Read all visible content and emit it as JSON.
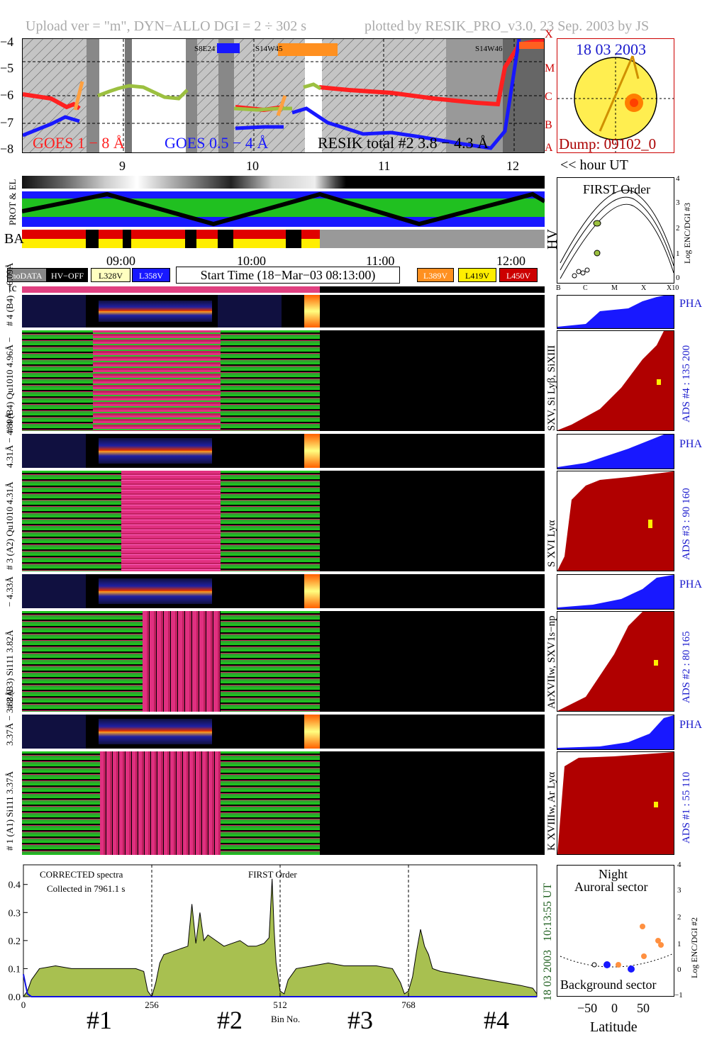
{
  "header": {
    "left": "Upload ver = \"m\", DYN−ALLO DGI =   2 ÷ 302 s",
    "right": "plotted by RESIK_PRO_v3.0, 23 Sep. 2003 by JS"
  },
  "goes": {
    "ytick_labels": [
      "−4",
      "−5",
      "−6",
      "−7",
      "−8"
    ],
    "class_labels": [
      "X",
      "M",
      "C",
      "B",
      "A"
    ],
    "legend_goes18": "GOES 1 − 8 Å",
    "legend_goes054": "GOES 0.5 − 4 Å",
    "legend_resik": "RESIK total #2 3.8 − 4.3 Å",
    "flare_tags": [
      "S8E24",
      "S14W45",
      "S14W46"
    ],
    "colors": {
      "goes18": "#ff2020",
      "goes054": "#1010e0",
      "resik": "#000000",
      "mask": "#ffa040"
    }
  },
  "sun": {
    "date": "18 03 2003",
    "dump": "Dump: 09102_0",
    "fill": "#ffee50",
    "spot": "#ff7f00"
  },
  "hour_axis": {
    "ticks": [
      "9",
      "10",
      "11",
      "12"
    ],
    "unit_label": "<< hour UT"
  },
  "hk": {
    "row1": "PROT & EL",
    "row2": "BA",
    "hv": "HV"
  },
  "time_axis": {
    "ticks": [
      "09:00",
      "10:00",
      "11:00",
      "12:00"
    ]
  },
  "legend_chips": {
    "nodata": "noDATA",
    "hvoff": "HV−OFF",
    "l328": "L328V",
    "l358": "L358V",
    "l389": "L389V",
    "l419": "L419V",
    "l450": "L450V"
  },
  "start_time": "Start Time (18−Mar−03 08:13:00)",
  "tc": "tc",
  "first_order": {
    "title": "FIRST Order",
    "ylabel": "Log ENC/DGI #3",
    "yticks": [
      "4",
      "3",
      "2",
      "1",
      "0"
    ],
    "xticks": [
      "B",
      "C",
      "M",
      "X",
      "X10"
    ]
  },
  "channels": [
    {
      "pha_label": "# 4 (B4) − 6.09Å",
      "spec_label": "# 4 (B4) Qu1010 4.96Å −",
      "line_label": "SXV, Si Lyβ, SiXIII",
      "ads": "ADS #4 :   135 200",
      "pha": "PHA"
    },
    {
      "pha_label": "4.31Å − 4.89Å",
      "spec_label": "# 3 (A2) Qu1010 4.31Å",
      "line_label": "S XVI Lyα",
      "ads": "ADS #3 :   90 160",
      "pha": "PHA"
    },
    {
      "pha_label": "− 4.33Å",
      "spec_label": "# 2 (B3) Si111 3.82Å",
      "line_label": "ArXVIIw, SXV1s−np",
      "ads": "ADS #2 :   80 165",
      "pha": "PHA"
    },
    {
      "pha_label": "3.37Å − 3.88Å",
      "spec_label": "# 1 (A1) Si111 3.37Å",
      "line_label": "K XVIIIw, Ar Lyα",
      "ads": "ADS #1 :   55 110",
      "pha": "PHA"
    }
  ],
  "spectrum": {
    "note1": "CORRECTED spectra",
    "note2": "Collected in  7961.1 s",
    "first_order": "FIRST Order",
    "side_time": "10:13:55 UT",
    "side_date": "18 03 2003",
    "xtick_labels": [
      "0",
      "256",
      "512",
      "768"
    ],
    "xlabel": "Bin No.",
    "section_labels": [
      "#1",
      "#2",
      "#3",
      "#4"
    ],
    "section_colors": [
      "#cc0000",
      "#1010d0",
      "#cc0000",
      "#1010d0"
    ]
  },
  "chart_data": {
    "type": "area",
    "title": "CORRECTED spectra",
    "xlabel": "Bin No.",
    "ylabel": "",
    "xlim": [
      0,
      1024
    ],
    "ylim": [
      0,
      0.47
    ],
    "ytick_labels": [
      "0.0",
      "0.1",
      "0.2",
      "0.3",
      "0.4"
    ],
    "x": [
      0,
      8,
      16,
      32,
      64,
      96,
      128,
      160,
      192,
      224,
      240,
      248,
      256,
      264,
      272,
      280,
      296,
      312,
      328,
      336,
      344,
      352,
      360,
      368,
      384,
      400,
      416,
      432,
      448,
      464,
      480,
      490,
      496,
      500,
      504,
      512,
      520,
      528,
      544,
      576,
      608,
      640,
      672,
      704,
      736,
      752,
      760,
      768,
      776,
      784,
      792,
      800,
      808,
      816,
      832,
      864,
      896,
      928,
      960,
      992,
      1016,
      1024
    ],
    "series": [
      {
        "name": "",
        "values": [
          0.0,
          0.02,
          0.06,
          0.1,
          0.11,
          0.1,
          0.1,
          0.1,
          0.1,
          0.1,
          0.09,
          0.02,
          0.0,
          0.05,
          0.12,
          0.15,
          0.16,
          0.17,
          0.18,
          0.33,
          0.19,
          0.3,
          0.2,
          0.22,
          0.2,
          0.18,
          0.19,
          0.2,
          0.18,
          0.18,
          0.19,
          0.21,
          0.42,
          0.24,
          0.12,
          0.02,
          0.01,
          0.06,
          0.1,
          0.11,
          0.12,
          0.11,
          0.11,
          0.11,
          0.1,
          0.05,
          0.01,
          0.02,
          0.07,
          0.16,
          0.24,
          0.18,
          0.15,
          0.1,
          0.09,
          0.08,
          0.07,
          0.06,
          0.05,
          0.04,
          0.03,
          0.01
        ]
      },
      {
        "name": "",
        "values": [
          0.08,
          0.01,
          0.0,
          0.0,
          0.0,
          0.0,
          0.0,
          0.0,
          0.0,
          0.0,
          0.0,
          0.0,
          0.0,
          0.0,
          0.0,
          0.0,
          0.0,
          0.0,
          0.0,
          0.0,
          0.0,
          0.0,
          0.0,
          0.0,
          0.0,
          0.0,
          0.0,
          0.0,
          0.0,
          0.0,
          0.0,
          0.0,
          0.0,
          0.0,
          0.0,
          0.0,
          0.0,
          0.0,
          0.0,
          0.0,
          0.0,
          0.0,
          0.0,
          0.0,
          0.0,
          0.0,
          0.0,
          0.0,
          0.0,
          0.0,
          0.0,
          0.0,
          0.0,
          0.0,
          0.0,
          0.0,
          0.0,
          0.0,
          0.0,
          0.0,
          0.0,
          0.0
        ]
      }
    ],
    "colors": {
      "fill": "#a8c050",
      "line": "#000000",
      "series2": "#1010e0"
    }
  },
  "latitude": {
    "title1": "Night",
    "title2": "Auroral sector",
    "bottom_label": "Background sector",
    "xlabel": "Latitude",
    "ylabel": "Log ENC/DGI #2",
    "xticks": [
      "−50",
      "0",
      "50"
    ],
    "yticks": [
      "4",
      "3",
      "2",
      "1",
      "0",
      "−1"
    ]
  }
}
